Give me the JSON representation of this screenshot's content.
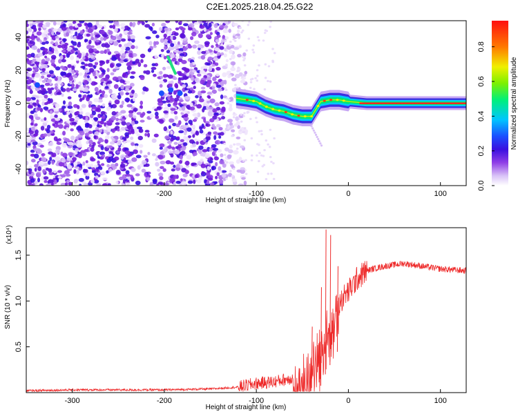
{
  "title": "C2E1.2025.218.04.25.G22",
  "colors": {
    "snr_line": "#ee2a2a",
    "colormap": [
      "#ffffff",
      "#e6d6fb",
      "#c59bf3",
      "#9a53e8",
      "#7b17dc",
      "#3a10e0",
      "#1a4fff",
      "#00c6ff",
      "#00f07a",
      "#7cf000",
      "#f0f000",
      "#ff7a00",
      "#ff1010"
    ]
  },
  "chart_data": [
    {
      "type": "heatmap",
      "name": "spectrogram",
      "xlabel": "Height of straight line (km)",
      "ylabel": "Frequency (Hz)",
      "xlim": [
        -350,
        128
      ],
      "ylim": [
        -50,
        50
      ],
      "xticks": [
        -300,
        -200,
        -100,
        0,
        100
      ],
      "yticks": [
        -40,
        -20,
        0,
        20,
        40
      ],
      "xtick_labels": [
        "-300",
        "-200",
        "-100",
        "0",
        "100"
      ],
      "ytick_labels": [
        "-40",
        "-20",
        "0",
        "20",
        "40"
      ],
      "colorbar": {
        "label": "Normalized spectral amplitude",
        "range": [
          0.0,
          0.95
        ],
        "ticks": [
          0.0,
          0.2,
          0.4,
          0.6,
          0.8
        ],
        "tick_labels": [
          "0.0",
          "0.2",
          "0.4",
          "0.6",
          "0.8"
        ]
      },
      "tone_track": [
        {
          "x": -122,
          "y": 3
        },
        {
          "x": -110,
          "y": 2
        },
        {
          "x": -100,
          "y": 1
        },
        {
          "x": -90,
          "y": -2
        },
        {
          "x": -80,
          "y": -4
        },
        {
          "x": -70,
          "y": -5
        },
        {
          "x": -60,
          "y": -7
        },
        {
          "x": -50,
          "y": -8
        },
        {
          "x": -40,
          "y": -8
        },
        {
          "x": -30,
          "y": 1
        },
        {
          "x": -20,
          "y": 2
        },
        {
          "x": -10,
          "y": 2
        },
        {
          "x": 0,
          "y": 1
        },
        {
          "x": 20,
          "y": 0
        },
        {
          "x": 60,
          "y": 0
        },
        {
          "x": 100,
          "y": 0
        },
        {
          "x": 128,
          "y": 0
        }
      ],
      "noise_region_x": [
        -350,
        -120
      ]
    },
    {
      "type": "line",
      "name": "snr",
      "xlabel": "Height of straight line (km)",
      "ylabel": "SNR (10 * v/v)",
      "y_multiplier_label": "(x10⁴)",
      "xlim": [
        -350,
        128
      ],
      "ylim": [
        0.0,
        1.8
      ],
      "xticks": [
        -300,
        -200,
        -100,
        0,
        100
      ],
      "yticks": [
        0.5,
        1.0,
        1.5
      ],
      "xtick_labels": [
        "-300",
        "-200",
        "-100",
        "0",
        "100"
      ],
      "ytick_labels": [
        "0.5",
        "1.0",
        "1.5"
      ],
      "series_envelope": {
        "x": [
          -350,
          -300,
          -250,
          -200,
          -150,
          -120,
          -100,
          -80,
          -60,
          -45,
          -35,
          -25,
          -15,
          -5,
          0,
          10,
          20,
          30,
          40,
          60,
          80,
          100,
          128
        ],
        "y": [
          0.02,
          0.03,
          0.03,
          0.03,
          0.04,
          0.06,
          0.1,
          0.12,
          0.16,
          0.25,
          0.45,
          0.7,
          0.9,
          1.05,
          1.1,
          1.25,
          1.33,
          1.36,
          1.38,
          1.41,
          1.38,
          1.35,
          1.33
        ]
      },
      "spikes": [
        {
          "x": -25,
          "y": 1.78
        },
        {
          "x": -20,
          "y": 1.72
        },
        {
          "x": -30,
          "y": 1.15
        },
        {
          "x": -12,
          "y": 1.38
        },
        {
          "x": -40,
          "y": 0.72
        }
      ]
    }
  ]
}
